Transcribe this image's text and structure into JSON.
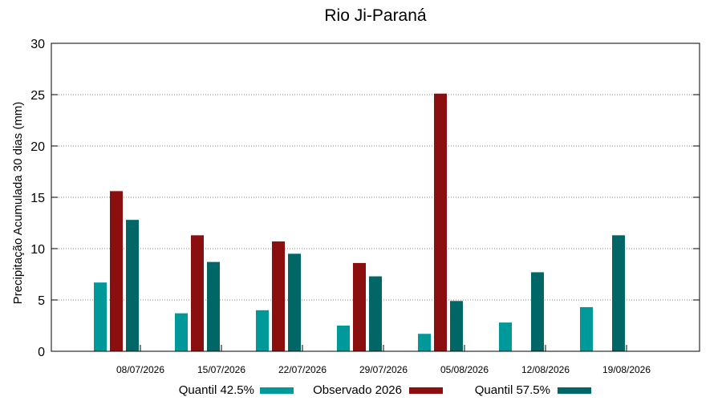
{
  "chart_data": {
    "type": "bar",
    "title": "Rio Ji-Paraná",
    "ylabel": "Precipitação Acumulada 30 dias (mm)",
    "xlabel": "",
    "ylim": [
      0,
      30
    ],
    "yticks": [
      0,
      5,
      10,
      15,
      20,
      25,
      30
    ],
    "grid": true,
    "legend_position": "bottom",
    "categories": [
      "08/07/2026",
      "15/07/2026",
      "22/07/2026",
      "29/07/2026",
      "05/08/2026",
      "12/08/2026",
      "19/08/2026"
    ],
    "series": [
      {
        "name": "Quantil 42.5%",
        "color": "#009999",
        "values": [
          6.7,
          3.7,
          4.0,
          2.5,
          1.7,
          2.8,
          4.3
        ]
      },
      {
        "name": "Observado 2026",
        "color": "#8B0F0F",
        "values": [
          15.6,
          11.3,
          10.7,
          8.6,
          25.1,
          null,
          null
        ]
      },
      {
        "name": "Quantil 57.5%",
        "color": "#006666",
        "values": [
          12.8,
          8.7,
          9.5,
          7.3,
          4.9,
          7.7,
          11.3
        ]
      }
    ]
  }
}
